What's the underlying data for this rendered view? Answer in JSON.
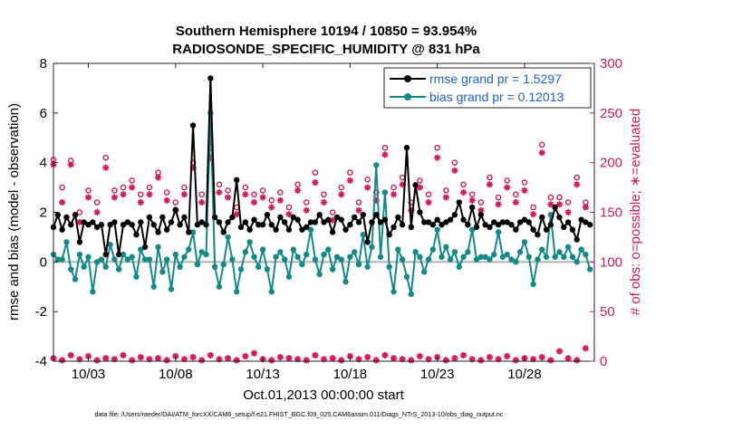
{
  "chart_data": {
    "type": "line",
    "title_line1": "Southern Hemisphere 10194 / 10850 = 93.954%",
    "title_line2": "RADIOSONDE_SPECIFIC_HUMIDITY @ 831 hPa",
    "ylabel_left": "rmse and bias (model - observation)",
    "ylabel_right": "# of obs: o=possible; ∗=evaluated",
    "xlabel": "Oct.01,2013 00:00:00 start",
    "footnote": "data file: /Users/raeder/DAI/ATM_forcXX/CAM6_setup/f.e21.FHIST_BGC.f09_025.CAM6assim.011/Diags_NTrS_2013-10/obs_diag_output.nc",
    "x_ticks": [
      {
        "pos": 3,
        "label": "10/03"
      },
      {
        "pos": 8,
        "label": "10/08"
      },
      {
        "pos": 13,
        "label": "10/13"
      },
      {
        "pos": 18,
        "label": "10/18"
      },
      {
        "pos": 23,
        "label": "10/23"
      },
      {
        "pos": 28,
        "label": "10/28"
      }
    ],
    "xlim": [
      1,
      32
    ],
    "ylim_left": [
      -4,
      8
    ],
    "y_ticks_left": [
      "8",
      "6",
      "4",
      "2",
      "0",
      "-2",
      "-4"
    ],
    "ylim_right": [
      0,
      300
    ],
    "y_ticks_right": [
      "300",
      "250",
      "200",
      "150",
      "100",
      "50",
      "0"
    ],
    "legend_location": "top-right",
    "colors": {
      "rmse": "#000000",
      "bias": "#138a8a",
      "obs": "#d3195a",
      "legend_text": "#1f5fd0",
      "zero_line": "#b0b0b0"
    },
    "series": [
      {
        "name": "rmse grand pr = 1.5297",
        "x": [
          1.0,
          1.25,
          1.5,
          1.75,
          2.0,
          2.25,
          2.5,
          2.75,
          3.0,
          3.25,
          3.5,
          3.75,
          4.0,
          4.25,
          4.5,
          4.75,
          5.0,
          5.25,
          5.5,
          5.75,
          6.0,
          6.25,
          6.5,
          6.75,
          7.0,
          7.25,
          7.5,
          7.75,
          8.0,
          8.25,
          8.5,
          8.75,
          9.0,
          9.25,
          9.5,
          9.75,
          10.0,
          10.25,
          10.5,
          10.75,
          11.0,
          11.25,
          11.5,
          11.75,
          12.0,
          12.25,
          12.5,
          12.75,
          13.0,
          13.25,
          13.5,
          13.75,
          14.0,
          14.25,
          14.5,
          14.75,
          15.0,
          15.25,
          15.5,
          15.75,
          16.0,
          16.25,
          16.5,
          16.75,
          17.0,
          17.25,
          17.5,
          17.75,
          18.0,
          18.25,
          18.5,
          18.75,
          19.0,
          19.25,
          19.5,
          19.75,
          20.0,
          20.25,
          20.5,
          20.75,
          21.0,
          21.25,
          21.5,
          21.75,
          22.0,
          22.25,
          22.5,
          22.75,
          23.0,
          23.25,
          23.5,
          23.75,
          24.0,
          24.25,
          24.5,
          24.75,
          25.0,
          25.25,
          25.5,
          25.75,
          26.0,
          26.25,
          26.5,
          26.75,
          27.0,
          27.25,
          27.5,
          27.75,
          28.0,
          28.25,
          28.5,
          28.75,
          29.0,
          29.25,
          29.5,
          29.75,
          30.0,
          30.25,
          30.5,
          30.75,
          31.0,
          31.25,
          31.5,
          31.75
        ],
        "values": [
          1.4,
          1.9,
          1.3,
          1.8,
          1.5,
          1.9,
          0.8,
          1.6,
          1.5,
          1.6,
          1.4,
          1.5,
          0.3,
          1.5,
          1.6,
          0.3,
          1.5,
          1.6,
          1.5,
          1.1,
          1.6,
          0.6,
          1.8,
          1.5,
          1.2,
          1.8,
          1.3,
          1.6,
          2.1,
          1.5,
          1.8,
          1.2,
          5.5,
          1.5,
          1.6,
          1.5,
          7.4,
          1.8,
          1.6,
          1.2,
          1.6,
          1.8,
          3.3,
          1.4,
          1.6,
          1.3,
          1.7,
          1.5,
          1.5,
          1.9,
          1.5,
          1.3,
          1.8,
          1.6,
          1.3,
          1.8,
          1.7,
          1.3,
          1.4,
          1.6,
          1.6,
          1.9,
          1.6,
          1.7,
          1.2,
          1.8,
          1.7,
          1.3,
          1.5,
          1.8,
          1.6,
          1.9,
          0.8,
          1.6,
          1.9,
          1.6,
          1.7,
          1.1,
          1.4,
          1.8,
          1.5,
          4.6,
          1.4,
          3.1,
          2.0,
          1.6,
          1.6,
          1.5,
          1.7,
          1.5,
          1.6,
          1.7,
          1.9,
          2.4,
          1.7,
          1.5,
          2.2,
          1.4,
          1.9,
          1.5,
          1.4,
          1.6,
          1.5,
          1.6,
          1.6,
          1.5,
          1.3,
          1.6,
          1.7,
          1.6,
          1.3,
          1.1,
          1.8,
          1.3,
          1.5,
          2.2,
          1.8,
          1.4,
          1.6,
          1.3,
          0.9,
          1.7,
          1.6,
          1.5
        ]
      },
      {
        "name": "bias grand pr = 0.12013",
        "x": [
          1.0,
          1.25,
          1.5,
          1.75,
          2.0,
          2.25,
          2.5,
          2.75,
          3.0,
          3.25,
          3.5,
          3.75,
          4.0,
          4.25,
          4.5,
          4.75,
          5.0,
          5.25,
          5.5,
          5.75,
          6.0,
          6.25,
          6.5,
          6.75,
          7.0,
          7.25,
          7.5,
          7.75,
          8.0,
          8.25,
          8.5,
          8.75,
          9.0,
          9.25,
          9.5,
          9.75,
          10.0,
          10.25,
          10.5,
          10.75,
          11.0,
          11.25,
          11.5,
          11.75,
          12.0,
          12.25,
          12.5,
          12.75,
          13.0,
          13.25,
          13.5,
          13.75,
          14.0,
          14.25,
          14.5,
          14.75,
          15.0,
          15.25,
          15.5,
          15.75,
          16.0,
          16.25,
          16.5,
          16.75,
          17.0,
          17.25,
          17.5,
          17.75,
          18.0,
          18.25,
          18.5,
          18.75,
          19.0,
          19.25,
          19.5,
          19.75,
          20.0,
          20.25,
          20.5,
          20.75,
          21.0,
          21.25,
          21.5,
          21.75,
          22.0,
          22.25,
          22.5,
          22.75,
          23.0,
          23.25,
          23.5,
          23.75,
          24.0,
          24.25,
          24.5,
          24.75,
          25.0,
          25.25,
          25.5,
          25.75,
          26.0,
          26.25,
          26.5,
          26.75,
          27.0,
          27.25,
          27.5,
          27.75,
          28.0,
          28.25,
          28.5,
          28.75,
          29.0,
          29.25,
          29.5,
          29.75,
          30.0,
          30.25,
          30.5,
          30.75,
          31.0,
          31.25,
          31.5,
          31.75
        ],
        "values": [
          0.3,
          0.1,
          0.1,
          0.8,
          -0.3,
          -0.7,
          0.3,
          -0.2,
          0.2,
          -1.2,
          0.0,
          0.1,
          -0.2,
          0.7,
          0.1,
          -0.3,
          0.3,
          0.1,
          0.2,
          -0.6,
          0.5,
          0.1,
          0.1,
          -1.0,
          0.6,
          -0.4,
          0.1,
          -1.1,
          0.3,
          -0.2,
          0.2,
          0.5,
          1.2,
          -0.1,
          0.4,
          0.3,
          6.0,
          -0.2,
          -1.0,
          -0.1,
          1.0,
          0.1,
          -1.2,
          -0.3,
          0.4,
          0.8,
          0.2,
          -0.2,
          0.5,
          -0.3,
          -1.2,
          0.2,
          0.4,
          0.1,
          -0.6,
          0.5,
          0.2,
          -0.1,
          0.3,
          1.3,
          0.1,
          -0.5,
          0.3,
          0.5,
          -0.3,
          0.2,
          0.1,
          -0.8,
          0.2,
          0.4,
          -0.1,
          1.1,
          -0.2,
          0.6,
          3.9,
          0.2,
          2.8,
          -0.2,
          -1.2,
          0.5,
          0.1,
          -0.6,
          -1.3,
          0.4,
          0.2,
          -0.4,
          0.1,
          0.5,
          1.3,
          0.2,
          0.6,
          0.1,
          0.4,
          -0.2,
          0.2,
          0.4,
          1.3,
          0.1,
          0.2,
          0.2,
          0.1,
          0.3,
          1.2,
          0.2,
          0.3,
          0.1,
          0.0,
          0.4,
          0.8,
          0.2,
          -0.9,
          0.1,
          0.5,
          0.2,
          1.9,
          0.2,
          0.4,
          0.2,
          0.6,
          0.2,
          0.0,
          0.5,
          0.3,
          -0.3
        ]
      },
      {
        "name": "possible",
        "axis": "right",
        "marker": "o",
        "x": [
          1.0,
          1.5,
          2.0,
          2.5,
          3.0,
          3.5,
          4.0,
          4.5,
          5.0,
          5.5,
          6.0,
          6.5,
          7.0,
          7.5,
          8.0,
          8.5,
          9.0,
          9.5,
          10.0,
          10.5,
          11.0,
          11.5,
          12.0,
          12.5,
          13.0,
          13.5,
          14.0,
          14.5,
          15.0,
          15.5,
          16.0,
          16.5,
          17.0,
          17.5,
          18.0,
          18.5,
          19.0,
          19.5,
          20.0,
          20.5,
          21.0,
          21.5,
          22.0,
          22.5,
          23.0,
          23.5,
          24.0,
          24.5,
          25.0,
          25.5,
          26.0,
          26.5,
          27.0,
          27.5,
          28.0,
          28.5,
          29.0,
          29.5,
          30.0,
          30.5,
          31.0,
          31.5
        ],
        "values": [
          203,
          175,
          202,
          150,
          172,
          160,
          205,
          172,
          175,
          182,
          168,
          175,
          190,
          170,
          160,
          175,
          200,
          168,
          210,
          178,
          172,
          155,
          175,
          168,
          172,
          162,
          170,
          155,
          178,
          160,
          190,
          168,
          150,
          175,
          190,
          160,
          183,
          170,
          215,
          175,
          185,
          160,
          182,
          168,
          215,
          172,
          200,
          178,
          168,
          160,
          185,
          165,
          182,
          168,
          180,
          155,
          218,
          165,
          165,
          160,
          185,
          160
        ]
      },
      {
        "name": "evaluated",
        "axis": "right",
        "marker": "*",
        "x": [
          1.0,
          1.5,
          2.0,
          2.5,
          3.0,
          3.5,
          4.0,
          4.5,
          5.0,
          5.5,
          6.0,
          6.5,
          7.0,
          7.5,
          8.0,
          8.5,
          9.0,
          9.5,
          10.0,
          10.5,
          11.0,
          11.5,
          12.0,
          12.5,
          13.0,
          13.5,
          14.0,
          14.5,
          15.0,
          15.5,
          16.0,
          16.5,
          17.0,
          17.5,
          18.0,
          18.5,
          19.0,
          19.5,
          20.0,
          20.5,
          21.0,
          21.5,
          22.0,
          22.5,
          23.0,
          23.5,
          24.0,
          24.5,
          25.0,
          25.5,
          26.0,
          26.5,
          27.0,
          27.5,
          28.0,
          28.5,
          29.0,
          29.5,
          30.0,
          30.5,
          31.0,
          31.5
        ],
        "values": [
          198,
          160,
          198,
          140,
          165,
          150,
          195,
          165,
          168,
          175,
          160,
          168,
          185,
          162,
          152,
          168,
          195,
          160,
          205,
          170,
          165,
          148,
          168,
          160,
          165,
          155,
          162,
          148,
          172,
          152,
          180,
          160,
          142,
          168,
          182,
          152,
          175,
          162,
          208,
          168,
          178,
          152,
          175,
          160,
          205,
          165,
          192,
          170,
          162,
          152,
          178,
          158,
          175,
          160,
          172,
          148,
          210,
          158,
          158,
          150,
          178,
          155
        ]
      },
      {
        "name": "obs_bottom",
        "axis": "right",
        "marker": "*",
        "x": [
          1.0,
          1.5,
          2.0,
          2.5,
          3.0,
          3.5,
          4.0,
          4.5,
          5.0,
          5.5,
          6.0,
          6.5,
          7.0,
          7.5,
          8.0,
          8.5,
          9.0,
          9.5,
          10.0,
          10.5,
          11.0,
          11.5,
          12.0,
          12.5,
          13.0,
          13.5,
          14.0,
          14.5,
          15.0,
          15.5,
          16.0,
          16.5,
          17.0,
          17.5,
          18.0,
          18.5,
          19.0,
          19.5,
          20.0,
          20.5,
          21.0,
          21.5,
          22.0,
          22.5,
          23.0,
          23.5,
          24.0,
          24.5,
          25.0,
          25.5,
          26.0,
          26.5,
          27.0,
          27.5,
          28.0,
          28.5,
          29.0,
          29.5,
          30.0,
          30.5,
          31.0,
          31.5
        ],
        "values": [
          3,
          1,
          6,
          2,
          5,
          1,
          3,
          2,
          6,
          1,
          4,
          2,
          3,
          1,
          5,
          2,
          4,
          1,
          6,
          2,
          3,
          1,
          5,
          8,
          2,
          1,
          4,
          3,
          2,
          1,
          6,
          2,
          3,
          1,
          5,
          2,
          4,
          1,
          6,
          3,
          2,
          1,
          5,
          2,
          4,
          1,
          3,
          6,
          2,
          1,
          4,
          2,
          5,
          1,
          3,
          2,
          4,
          1,
          10,
          3,
          1,
          13
        ]
      }
    ]
  }
}
